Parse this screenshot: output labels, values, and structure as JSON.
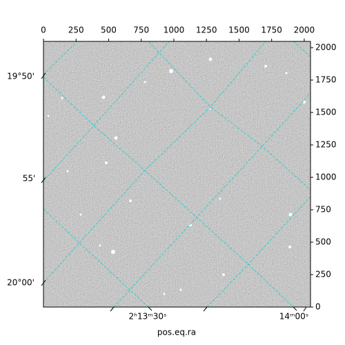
{
  "chart_data": {
    "type": "image",
    "xlabel": "pos.eq.ra",
    "xlim": [
      0,
      2048
    ],
    "ylim": [
      0,
      2048
    ],
    "xticks": [
      0,
      250,
      500,
      750,
      1000,
      1250,
      1500,
      1750,
      2000
    ],
    "yticks": [
      0,
      250,
      500,
      750,
      1000,
      1250,
      1500,
      1750,
      2000
    ],
    "wcs_y_labels": [
      "19°50'",
      "55'",
      "20°00'"
    ],
    "wcs_x_labels": [
      "2ʰ13ᵐ30ˢ",
      "14ᵐ00ˢ"
    ]
  }
}
